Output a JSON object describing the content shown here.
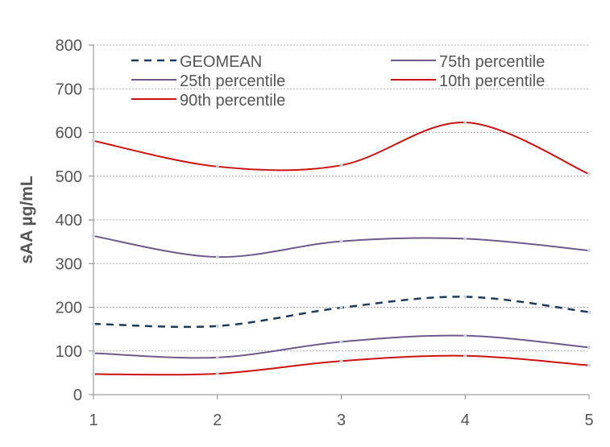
{
  "chart_data": {
    "type": "line",
    "title": "",
    "xlabel": "",
    "ylabel": "sAA µg/mL",
    "x": [
      1,
      2,
      3,
      4,
      5
    ],
    "xlim": [
      1,
      5
    ],
    "ylim": [
      0,
      800
    ],
    "yticks": [
      0,
      100,
      200,
      300,
      400,
      500,
      600,
      700,
      800
    ],
    "xticks": [
      1,
      2,
      3,
      4,
      5
    ],
    "grid": "horizontal dotted",
    "legend_position": "top",
    "series": [
      {
        "name": "GEOMEAN",
        "values": [
          162,
          157,
          199,
          224,
          189
        ],
        "color": "#1f3a5a",
        "dash": "dashed"
      },
      {
        "name": "25th percentile",
        "values": [
          95,
          85,
          121,
          135,
          108
        ],
        "color": "#6e5a8a",
        "dash": "solid"
      },
      {
        "name": "90th percentile",
        "values": [
          581,
          522,
          525,
          623,
          505
        ],
        "color": "#cc1111",
        "dash": "solid"
      },
      {
        "name": "75th percentile",
        "values": [
          363,
          315,
          351,
          357,
          330
        ],
        "color": "#6e5a8a",
        "dash": "solid"
      },
      {
        "name": "10th percentile",
        "values": [
          47,
          48,
          77,
          89,
          67
        ],
        "color": "#cc1111",
        "dash": "solid"
      }
    ]
  }
}
